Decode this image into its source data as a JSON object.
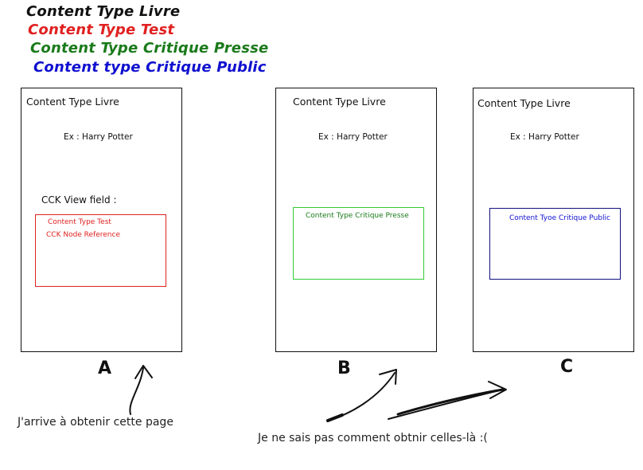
{
  "legend": [
    {
      "text": "Content Type Livre",
      "color": "#111111"
    },
    {
      "text": "Content Type Test",
      "color": "#e02020"
    },
    {
      "text": "Content Type Critique Presse",
      "color": "#1a7a1a"
    },
    {
      "text": "Content type Critique Public",
      "color": "#1010d0"
    }
  ],
  "panels": {
    "a": {
      "title": "Content Type Livre",
      "example": "Ex : Harry Potter",
      "cck_label": "CCK View field :",
      "inner": {
        "line1": "Content Type Test",
        "line2": "CCK Node Reference",
        "color": "#e02020"
      },
      "letter": "A"
    },
    "b": {
      "title": "Content Type Livre",
      "example": "Ex : Harry Potter",
      "inner": {
        "line1": "Content Type Critique Presse",
        "color": "#1a7a1a",
        "border_color": "#33cc33"
      },
      "letter": "B"
    },
    "c": {
      "title": "Content Type Livre",
      "example": "Ex : Harry Potter",
      "inner": {
        "line1": "Content Tyoe Critique Public",
        "color": "#1010d0",
        "border_color": "#101080"
      },
      "letter": "C"
    }
  },
  "captions": {
    "left": "J'arrive à obtenir cette page",
    "right": "Je ne sais pas comment obtnir celles-là :("
  }
}
